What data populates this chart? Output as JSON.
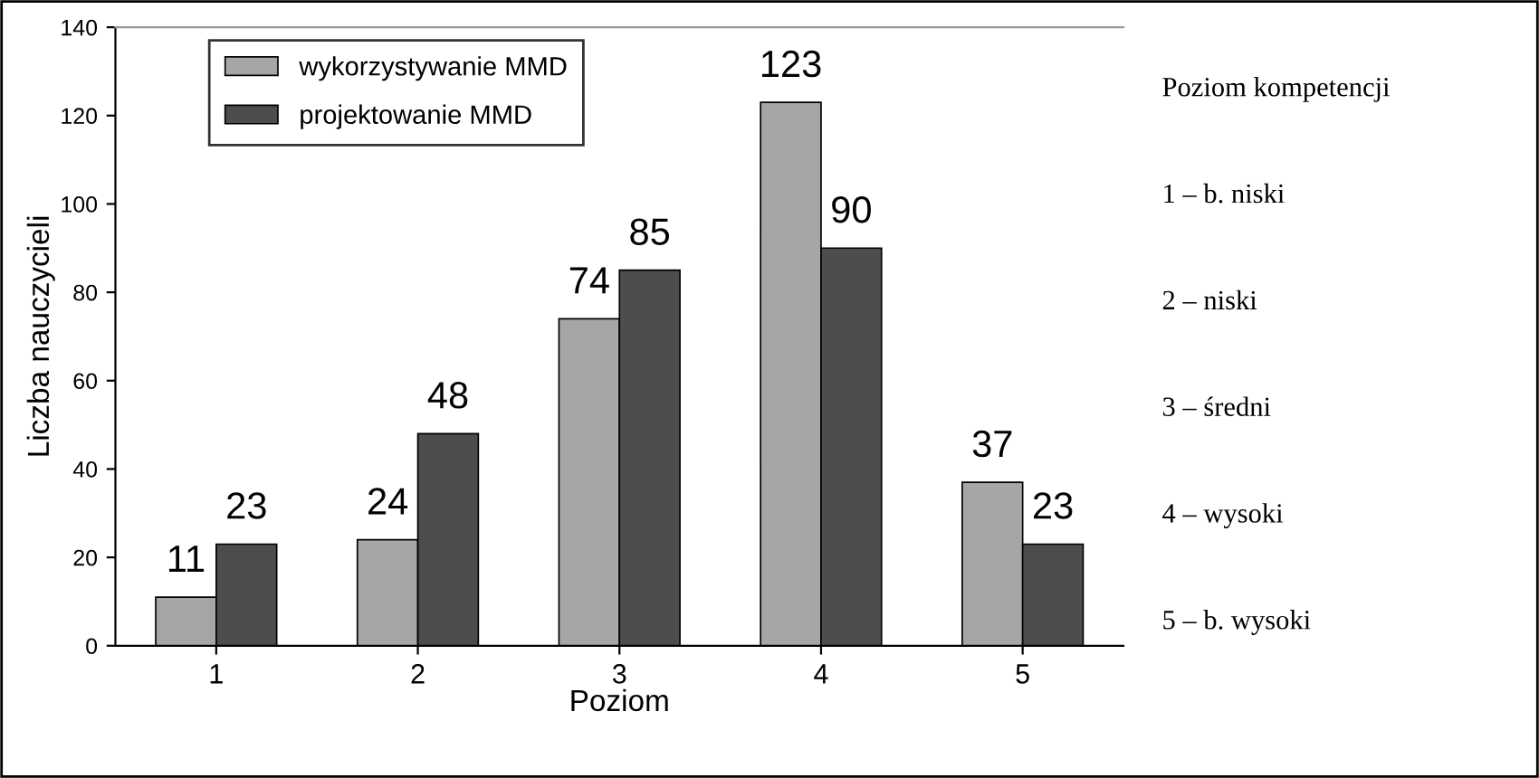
{
  "chart_data": {
    "type": "bar",
    "xlabel": "Poziom",
    "ylabel": "Liczba nauczycieli",
    "categories": [
      "1",
      "2",
      "3",
      "4",
      "5"
    ],
    "series": [
      {
        "name": "wykorzystywanie MMD",
        "color": "#a6a6a6",
        "values": [
          11,
          24,
          74,
          123,
          37
        ]
      },
      {
        "name": "projektowanie MMD",
        "color": "#4d4d4d",
        "values": [
          23,
          48,
          85,
          90,
          23
        ]
      }
    ],
    "ylim": [
      0,
      140
    ],
    "yticks": [
      0,
      20,
      40,
      60,
      80,
      100,
      120,
      140
    ],
    "grid": false,
    "legend": "top left",
    "data_labels": true,
    "annotations": [
      "Poziom kompetencji",
      "1 – b. niski",
      "2 – niski",
      "3 – średni",
      "4 – wysoki",
      "5 – b. wysoki"
    ]
  }
}
